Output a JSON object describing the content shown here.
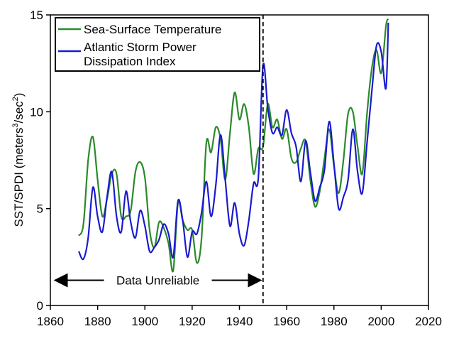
{
  "chart_data": {
    "type": "line",
    "title": "",
    "xlabel": "",
    "ylabel": "SST/SPDI (meters³/sec²)",
    "ylabel_parts": {
      "base": "SST/SPDI (meters",
      "sup1": "3",
      "mid": "/sec",
      "sup2": "2",
      "end": ")"
    },
    "xlim": [
      1860,
      2020
    ],
    "ylim": [
      0,
      15
    ],
    "xticks": [
      1860,
      1880,
      1900,
      1920,
      1940,
      1960,
      1980,
      2000,
      2020
    ],
    "yticks": [
      0,
      5,
      10,
      15
    ],
    "grid": false,
    "legend_position": "top-left",
    "series": [
      {
        "name": "Sea-Surface Temperature",
        "color": "#2a8a2a",
        "x": [
          1872,
          1874,
          1876,
          1878,
          1880,
          1882,
          1884,
          1886,
          1888,
          1890,
          1892,
          1894,
          1896,
          1898,
          1900,
          1902,
          1904,
          1906,
          1908,
          1910,
          1912,
          1914,
          1916,
          1918,
          1920,
          1922,
          1924,
          1926,
          1928,
          1930,
          1932,
          1934,
          1936,
          1938,
          1940,
          1942,
          1944,
          1946,
          1948,
          1950,
          1952,
          1954,
          1956,
          1958,
          1960,
          1962,
          1964,
          1966,
          1968,
          1970,
          1972,
          1974,
          1976,
          1978,
          1980,
          1982,
          1984,
          1986,
          1988,
          1990,
          1992,
          1994,
          1996,
          1998,
          2000,
          2002,
          2003
        ],
        "y": [
          3.6,
          4.2,
          7.5,
          8.7,
          6.5,
          4.6,
          5.5,
          6.8,
          6.8,
          4.6,
          4.6,
          4.9,
          6.9,
          7.4,
          6.6,
          3.9,
          3.0,
          4.3,
          4.0,
          3.2,
          1.8,
          5.3,
          4.4,
          3.9,
          3.9,
          2.2,
          3.5,
          8.4,
          7.9,
          9.2,
          8.6,
          6.5,
          8.9,
          11.0,
          9.6,
          10.4,
          9.2,
          6.8,
          8.1,
          8.2,
          10.4,
          9.2,
          9.6,
          8.6,
          9.1,
          7.6,
          7.4,
          8.1,
          8.5,
          6.5,
          5.1,
          5.9,
          7.6,
          9.1,
          7.2,
          5.8,
          7.5,
          9.9,
          10.0,
          8.2,
          6.8,
          9.9,
          12.2,
          13.2,
          12.0,
          14.4,
          14.8
        ]
      },
      {
        "name": "Atlantic Storm Power Dissipation Index",
        "color": "#1a1ad0",
        "x": [
          1872,
          1874,
          1876,
          1878,
          1880,
          1882,
          1884,
          1886,
          1888,
          1890,
          1892,
          1894,
          1896,
          1898,
          1900,
          1902,
          1904,
          1906,
          1908,
          1910,
          1912,
          1914,
          1916,
          1918,
          1920,
          1922,
          1924,
          1926,
          1928,
          1930,
          1932,
          1934,
          1936,
          1938,
          1940,
          1942,
          1944,
          1946,
          1948,
          1950,
          1952,
          1954,
          1956,
          1958,
          1960,
          1962,
          1964,
          1966,
          1968,
          1970,
          1972,
          1974,
          1976,
          1978,
          1980,
          1982,
          1984,
          1986,
          1988,
          1990,
          1992,
          1994,
          1996,
          1998,
          2000,
          2002,
          2003
        ],
        "y": [
          2.8,
          2.4,
          3.5,
          6.1,
          4.6,
          3.8,
          5.6,
          6.9,
          4.6,
          3.8,
          5.9,
          4.3,
          3.5,
          4.9,
          4.1,
          2.8,
          3.0,
          3.4,
          4.2,
          3.7,
          2.5,
          5.4,
          4.4,
          2.5,
          3.8,
          3.7,
          4.8,
          6.4,
          4.6,
          6.2,
          8.8,
          6.5,
          4.1,
          5.3,
          3.7,
          3.1,
          4.4,
          6.3,
          6.6,
          12.4,
          10.2,
          8.9,
          9.2,
          8.8,
          10.1,
          8.9,
          8.2,
          6.4,
          8.5,
          6.9,
          5.4,
          6.1,
          7.0,
          9.5,
          7.3,
          5.0,
          5.6,
          6.5,
          9.1,
          6.9,
          5.8,
          8.4,
          11.0,
          13.4,
          13.1,
          11.2,
          14.6
        ]
      }
    ],
    "annotations": {
      "divider_year": 1950,
      "unreliable_label": "Data Unreliable",
      "unreliable_range": [
        1862,
        1949
      ],
      "unreliable_y": 1.3
    }
  }
}
